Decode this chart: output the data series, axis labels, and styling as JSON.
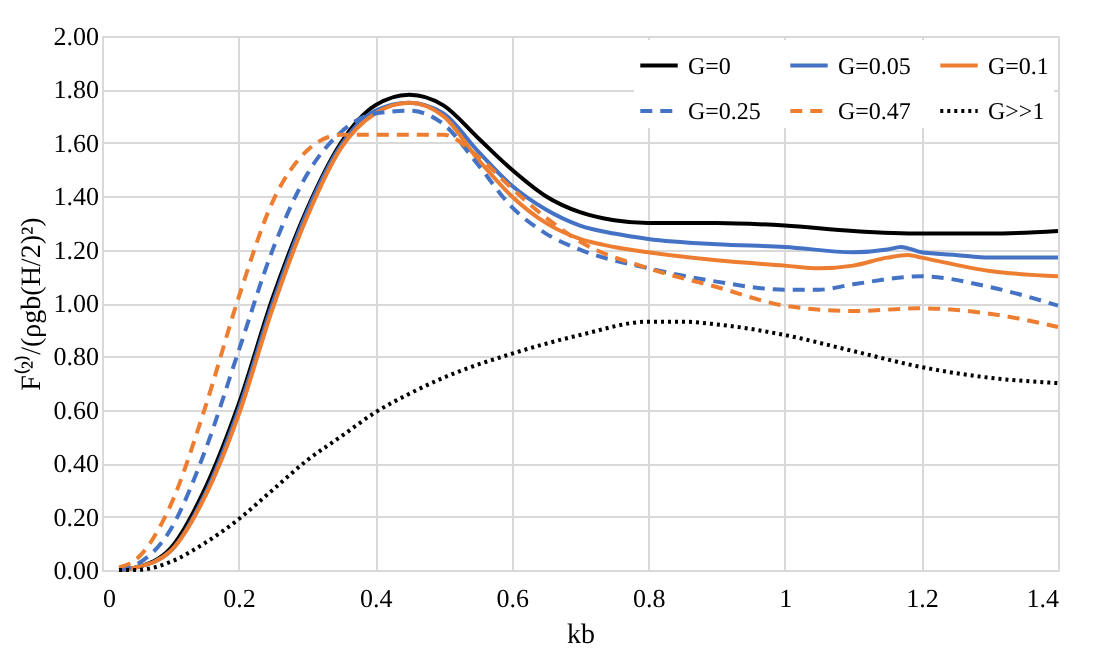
{
  "chart_data": {
    "type": "line",
    "xlabel": "kb",
    "ylabel": "F⁽²⁾/(ρgb(H/2)²)",
    "xlim": [
      0,
      1.4
    ],
    "xticks": [
      0,
      0.2,
      0.4,
      0.6,
      0.8,
      1,
      1.2,
      1.4
    ],
    "ylim": [
      0,
      2
    ],
    "yticks": [
      {
        "value": 0,
        "label": "0.00"
      },
      {
        "value": 0.2,
        "label": "0.20"
      },
      {
        "value": 0.4,
        "label": "0.40"
      },
      {
        "value": 0.6,
        "label": "0.60"
      },
      {
        "value": 0.8,
        "label": "0.80"
      },
      {
        "value": 1,
        "label": "1.00"
      },
      {
        "value": 1.2,
        "label": "1.20"
      },
      {
        "value": 1.4,
        "label": "1.40"
      },
      {
        "value": 1.6,
        "label": "1.60"
      },
      {
        "value": 1.8,
        "label": "1.80"
      },
      {
        "value": 2,
        "label": "2.00"
      }
    ],
    "grid": true,
    "legend": "top right",
    "marker": "none",
    "series": [
      {
        "name": "G=0",
        "color": "#000000",
        "line_style": "solid",
        "x": [
          0.025,
          0.05,
          0.1,
          0.15,
          0.2,
          0.25,
          0.3,
          0.35,
          0.4,
          0.45,
          0.5,
          0.55,
          0.6,
          0.65,
          0.7,
          0.75,
          0.8,
          0.9,
          1.0,
          1.1,
          1.2,
          1.3,
          1.4
        ],
        "values": [
          0,
          0.01,
          0.08,
          0.3,
          0.62,
          1.02,
          1.35,
          1.6,
          1.74,
          1.78,
          1.74,
          1.62,
          1.5,
          1.4,
          1.34,
          1.31,
          1.3,
          1.3,
          1.29,
          1.27,
          1.26,
          1.26,
          1.27
        ]
      },
      {
        "name": "G=0.05",
        "color": "#4472c4",
        "line_style": "solid",
        "x": [
          0.025,
          0.05,
          0.1,
          0.15,
          0.2,
          0.25,
          0.3,
          0.35,
          0.4,
          0.45,
          0.5,
          0.55,
          0.6,
          0.65,
          0.7,
          0.75,
          0.8,
          0.9,
          1.0,
          1.1,
          1.15,
          1.17,
          1.2,
          1.25,
          1.3,
          1.4
        ],
        "values": [
          0,
          0.01,
          0.07,
          0.28,
          0.6,
          1.0,
          1.34,
          1.59,
          1.72,
          1.75,
          1.71,
          1.57,
          1.44,
          1.35,
          1.29,
          1.26,
          1.24,
          1.22,
          1.21,
          1.19,
          1.2,
          1.21,
          1.19,
          1.18,
          1.17,
          1.17
        ]
      },
      {
        "name": "G=0.1",
        "color": "#ed7d31",
        "line_style": "solid",
        "x": [
          0.025,
          0.05,
          0.1,
          0.15,
          0.2,
          0.25,
          0.3,
          0.35,
          0.4,
          0.45,
          0.5,
          0.55,
          0.6,
          0.65,
          0.7,
          0.75,
          0.8,
          0.9,
          1.0,
          1.05,
          1.1,
          1.15,
          1.18,
          1.2,
          1.3,
          1.4
        ],
        "values": [
          0,
          0.01,
          0.07,
          0.27,
          0.58,
          0.98,
          1.32,
          1.58,
          1.71,
          1.75,
          1.7,
          1.54,
          1.4,
          1.3,
          1.24,
          1.21,
          1.19,
          1.16,
          1.14,
          1.13,
          1.14,
          1.17,
          1.18,
          1.17,
          1.12,
          1.1
        ]
      },
      {
        "name": "G=0.25",
        "color": "#4472c4",
        "line_style": "dashed",
        "x": [
          0.025,
          0.05,
          0.1,
          0.15,
          0.2,
          0.25,
          0.3,
          0.35,
          0.4,
          0.45,
          0.5,
          0.55,
          0.6,
          0.65,
          0.7,
          0.8,
          0.9,
          1.0,
          1.05,
          1.1,
          1.2,
          1.3,
          1.4
        ],
        "values": [
          0,
          0.02,
          0.15,
          0.44,
          0.82,
          1.2,
          1.48,
          1.64,
          1.71,
          1.72,
          1.67,
          1.52,
          1.36,
          1.26,
          1.2,
          1.13,
          1.08,
          1.05,
          1.05,
          1.07,
          1.1,
          1.06,
          0.99
        ]
      },
      {
        "name": "G=0.47",
        "color": "#ed7d31",
        "line_style": "dashed",
        "x": [
          0.025,
          0.05,
          0.1,
          0.15,
          0.2,
          0.25,
          0.3,
          0.35,
          0.4,
          0.45,
          0.5,
          0.55,
          0.6,
          0.65,
          0.7,
          0.8,
          0.9,
          1.0,
          1.1,
          1.2,
          1.3,
          1.4
        ],
        "values": [
          0.01,
          0.04,
          0.24,
          0.6,
          1.02,
          1.38,
          1.57,
          1.63,
          1.63,
          1.63,
          1.63,
          1.55,
          1.43,
          1.32,
          1.23,
          1.13,
          1.06,
          0.99,
          0.97,
          0.98,
          0.96,
          0.91
        ]
      },
      {
        "name": "G>>1",
        "color": "#000000",
        "line_style": "dotted",
        "x": [
          0.025,
          0.05,
          0.1,
          0.15,
          0.2,
          0.25,
          0.3,
          0.35,
          0.4,
          0.45,
          0.5,
          0.6,
          0.7,
          0.8,
          0.85,
          0.9,
          1.0,
          1.1,
          1.2,
          1.3,
          1.4
        ],
        "values": [
          0,
          0,
          0.03,
          0.1,
          0.19,
          0.3,
          0.41,
          0.5,
          0.59,
          0.66,
          0.72,
          0.81,
          0.88,
          0.93,
          0.93,
          0.92,
          0.88,
          0.82,
          0.76,
          0.72,
          0.7
        ]
      }
    ]
  }
}
